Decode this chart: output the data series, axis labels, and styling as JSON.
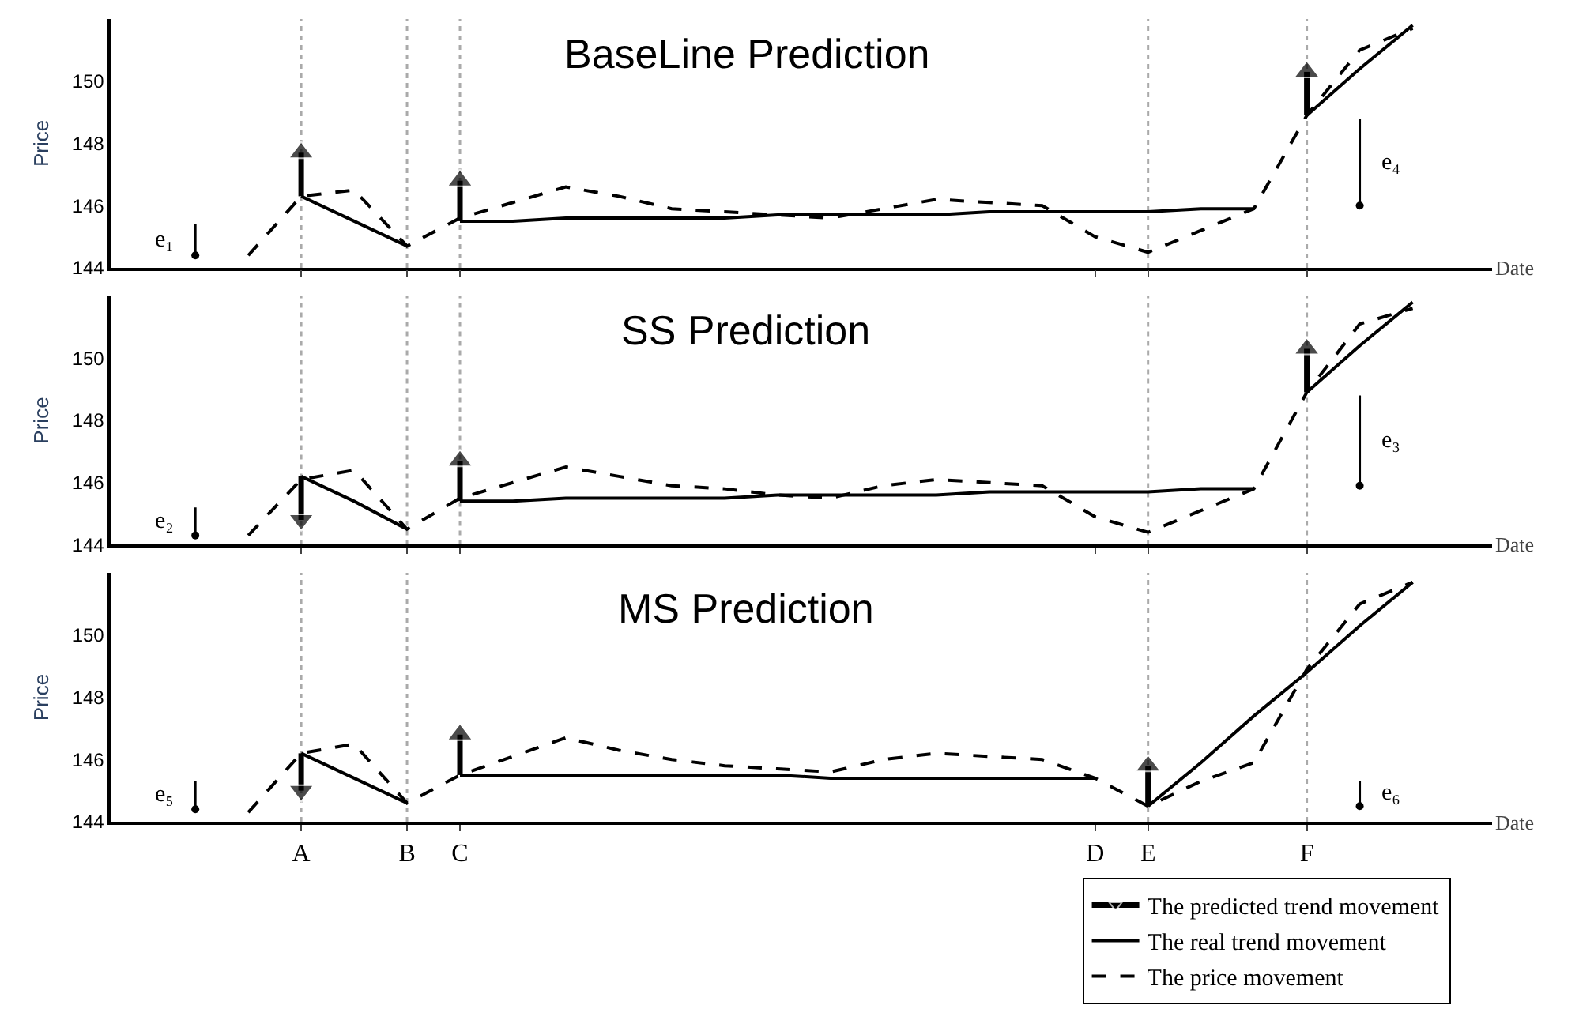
{
  "chart_data": [
    {
      "type": "line",
      "title": "BaseLine Prediction",
      "xlabel": "Date",
      "ylabel": "Price",
      "ylim": [
        144,
        152
      ],
      "yticks": [
        144,
        146,
        148,
        150
      ],
      "tick_labels": "y",
      "grid": false,
      "categories": [
        null,
        null,
        "A",
        null,
        "B",
        "C",
        null,
        null,
        null,
        null,
        null,
        null,
        null,
        null,
        null,
        null,
        null,
        "D",
        "E",
        null,
        null,
        "F",
        null,
        null
      ],
      "series": [
        {
          "color": "#000000",
          "line_style": "solid",
          "marker": "triangle",
          "x": [
            "A",
            "A"
          ],
          "values": [
            146.3,
            147.7
          ]
        },
        {
          "color": "#000000",
          "line_style": "solid",
          "marker": "triangle",
          "x": [
            "C",
            "C"
          ],
          "values": [
            145.5,
            146.8
          ]
        },
        {
          "color": "#000000",
          "line_style": "solid",
          "marker": "triangle",
          "x": [
            "F",
            "F"
          ],
          "values": [
            148.9,
            150.3
          ]
        },
        {
          "color": "#000000",
          "line_style": "solid",
          "marker": "none",
          "values": [
            null,
            null,
            146.3,
            145.5,
            144.7,
            null,
            null,
            null,
            null,
            null,
            null,
            null,
            null,
            null,
            null,
            null,
            null,
            null,
            null,
            null,
            null,
            null,
            null,
            null
          ]
        },
        {
          "color": "#000000",
          "line_style": "solid",
          "marker": "none",
          "values": [
            null,
            null,
            null,
            null,
            null,
            145.5,
            145.5,
            145.6,
            145.6,
            145.6,
            145.6,
            145.7,
            145.7,
            145.7,
            145.7,
            145.8,
            145.8,
            145.8,
            145.8,
            145.9,
            145.9,
            null,
            null,
            null
          ]
        },
        {
          "color": "#000000",
          "line_style": "solid",
          "marker": "none",
          "values": [
            null,
            null,
            null,
            null,
            null,
            null,
            null,
            null,
            null,
            null,
            null,
            null,
            null,
            null,
            null,
            null,
            null,
            null,
            null,
            null,
            null,
            148.9,
            150.4,
            151.8
          ]
        },
        {
          "color": "#000000",
          "line_style": "dashed",
          "marker": "none",
          "values": [
            null,
            144.4,
            146.3,
            146.5,
            144.7,
            145.6,
            146.1,
            146.6,
            146.3,
            145.9,
            145.8,
            145.7,
            145.6,
            145.9,
            146.2,
            146.1,
            146.0,
            145.0,
            144.5,
            145.2,
            145.9,
            148.9,
            151.0,
            151.7
          ]
        },
        {
          "type": "scatter",
          "color": "#000000",
          "marker": "circle",
          "values": [
            144.4,
            null,
            null,
            null,
            null,
            null,
            null,
            null,
            null,
            null,
            null,
            null,
            null,
            null,
            null,
            null,
            null,
            null,
            null,
            null,
            null,
            null,
            146.0,
            null
          ],
          "errors": [
            [
              144.4,
              145.4
            ],
            null,
            null,
            null,
            null,
            null,
            null,
            null,
            null,
            null,
            null,
            null,
            null,
            null,
            null,
            null,
            null,
            null,
            null,
            null,
            null,
            null,
            [
              146.0,
              148.8
            ],
            null
          ]
        }
      ],
      "ref_lines": [
        {
          "axis": "x",
          "value": "A",
          "color": "#aaaaaa",
          "line_style": "dotted"
        },
        {
          "axis": "x",
          "value": "B",
          "color": "#aaaaaa",
          "line_style": "dotted"
        },
        {
          "axis": "x",
          "value": "C",
          "color": "#aaaaaa",
          "line_style": "dotted"
        },
        {
          "axis": "x",
          "value": "E",
          "color": "#aaaaaa",
          "line_style": "dotted"
        },
        {
          "axis": "x",
          "value": "F",
          "color": "#aaaaaa",
          "line_style": "dotted"
        }
      ],
      "annotations": [
        "e₁",
        "e₄"
      ]
    },
    {
      "type": "line",
      "title": "SS Prediction",
      "xlabel": "Date",
      "ylabel": "Price",
      "ylim": [
        144,
        152
      ],
      "yticks": [
        144,
        146,
        148,
        150
      ],
      "tick_labels": "y",
      "grid": false,
      "categories": [
        null,
        null,
        "A",
        null,
        "B",
        "C",
        null,
        null,
        null,
        null,
        null,
        null,
        null,
        null,
        null,
        null,
        null,
        "D",
        "E",
        null,
        null,
        "F",
        null,
        null
      ],
      "series": [
        {
          "color": "#000000",
          "line_style": "solid",
          "marker": "triangle",
          "x": [
            "A",
            "A"
          ],
          "values": [
            146.2,
            144.8
          ]
        },
        {
          "color": "#000000",
          "line_style": "solid",
          "marker": "triangle",
          "x": [
            "C",
            "C"
          ],
          "values": [
            145.4,
            146.7
          ]
        },
        {
          "color": "#000000",
          "line_style": "solid",
          "marker": "triangle",
          "x": [
            "F",
            "F"
          ],
          "values": [
            148.9,
            150.3
          ]
        },
        {
          "color": "#000000",
          "line_style": "solid",
          "marker": "none",
          "values": [
            null,
            null,
            146.2,
            145.4,
            144.5,
            null,
            null,
            null,
            null,
            null,
            null,
            null,
            null,
            null,
            null,
            null,
            null,
            null,
            null,
            null,
            null,
            null,
            null,
            null
          ]
        },
        {
          "color": "#000000",
          "line_style": "solid",
          "marker": "none",
          "values": [
            null,
            null,
            null,
            null,
            null,
            145.4,
            145.4,
            145.5,
            145.5,
            145.5,
            145.5,
            145.6,
            145.6,
            145.6,
            145.6,
            145.7,
            145.7,
            145.7,
            145.7,
            145.8,
            145.8,
            null,
            null,
            null
          ]
        },
        {
          "color": "#000000",
          "line_style": "solid",
          "marker": "none",
          "values": [
            null,
            null,
            null,
            null,
            null,
            null,
            null,
            null,
            null,
            null,
            null,
            null,
            null,
            null,
            null,
            null,
            null,
            null,
            null,
            null,
            null,
            148.9,
            150.4,
            151.8
          ]
        },
        {
          "color": "#000000",
          "line_style": "dashed",
          "marker": "none",
          "values": [
            null,
            144.3,
            146.1,
            146.4,
            144.5,
            145.5,
            146.0,
            146.5,
            146.2,
            145.9,
            145.8,
            145.6,
            145.5,
            145.9,
            146.1,
            146.0,
            145.9,
            144.9,
            144.4,
            145.1,
            145.8,
            148.9,
            151.1,
            151.6
          ]
        },
        {
          "type": "scatter",
          "color": "#000000",
          "marker": "circle",
          "values": [
            144.3,
            null,
            null,
            null,
            null,
            null,
            null,
            null,
            null,
            null,
            null,
            null,
            null,
            null,
            null,
            null,
            null,
            null,
            null,
            null,
            null,
            null,
            145.9,
            null
          ],
          "errors": [
            [
              144.3,
              145.2
            ],
            null,
            null,
            null,
            null,
            null,
            null,
            null,
            null,
            null,
            null,
            null,
            null,
            null,
            null,
            null,
            null,
            null,
            null,
            null,
            null,
            null,
            [
              145.9,
              148.8
            ],
            null
          ]
        }
      ],
      "ref_lines": [
        {
          "axis": "x",
          "value": "A",
          "color": "#aaaaaa",
          "line_style": "dotted"
        },
        {
          "axis": "x",
          "value": "B",
          "color": "#aaaaaa",
          "line_style": "dotted"
        },
        {
          "axis": "x",
          "value": "C",
          "color": "#aaaaaa",
          "line_style": "dotted"
        },
        {
          "axis": "x",
          "value": "E",
          "color": "#aaaaaa",
          "line_style": "dotted"
        },
        {
          "axis": "x",
          "value": "F",
          "color": "#aaaaaa",
          "line_style": "dotted"
        }
      ],
      "annotations": [
        "e₂",
        "e₃"
      ]
    },
    {
      "type": "line",
      "title": "MS Prediction",
      "xlabel": "Date",
      "ylabel": "Price",
      "ylim": [
        144,
        152
      ],
      "yticks": [
        144,
        146,
        148,
        150
      ],
      "grid": false,
      "legend": "bottom right",
      "categories": [
        null,
        null,
        "A",
        null,
        "B",
        "C",
        null,
        null,
        null,
        null,
        null,
        null,
        null,
        null,
        null,
        null,
        null,
        "D",
        "E",
        null,
        null,
        "F",
        null,
        null
      ],
      "series": [
        {
          "name": "The predicted trend movement",
          "color": "#000000",
          "line_style": "solid",
          "marker": "triangle",
          "x": [
            "A",
            "A"
          ],
          "values": [
            146.2,
            145.0
          ]
        },
        {
          "color": "#000000",
          "line_style": "solid",
          "marker": "triangle",
          "x": [
            "C",
            "C"
          ],
          "values": [
            145.5,
            146.8
          ]
        },
        {
          "color": "#000000",
          "line_style": "solid",
          "marker": "triangle",
          "x": [
            "E",
            "E"
          ],
          "values": [
            144.5,
            145.8
          ]
        },
        {
          "name": "The real trend movement",
          "color": "#000000",
          "line_style": "solid",
          "marker": "none",
          "values": [
            null,
            null,
            146.2,
            145.4,
            144.6,
            null,
            null,
            null,
            null,
            null,
            null,
            null,
            null,
            null,
            null,
            null,
            null,
            null,
            null,
            null,
            null,
            null,
            null,
            null
          ]
        },
        {
          "color": "#000000",
          "line_style": "solid",
          "marker": "none",
          "values": [
            null,
            null,
            null,
            null,
            null,
            145.5,
            145.5,
            145.5,
            145.5,
            145.5,
            145.5,
            145.5,
            145.4,
            145.4,
            145.4,
            145.4,
            145.4,
            145.4,
            null,
            null,
            null,
            null,
            null,
            null
          ]
        },
        {
          "color": "#000000",
          "line_style": "solid",
          "marker": "none",
          "values": [
            null,
            null,
            null,
            null,
            null,
            null,
            null,
            null,
            null,
            null,
            null,
            null,
            null,
            null,
            null,
            null,
            null,
            null,
            144.5,
            145.9,
            147.4,
            148.8,
            150.3,
            151.7
          ]
        },
        {
          "name": "The price movement",
          "color": "#000000",
          "line_style": "dashed",
          "marker": "none",
          "values": [
            null,
            144.3,
            146.2,
            146.5,
            144.6,
            145.5,
            146.1,
            146.7,
            146.3,
            146.0,
            145.8,
            145.7,
            145.6,
            146.0,
            146.2,
            146.1,
            146.0,
            145.4,
            144.5,
            145.3,
            145.9,
            148.9,
            151.0,
            151.7
          ]
        },
        {
          "type": "scatter",
          "color": "#000000",
          "marker": "circle",
          "values": [
            144.4,
            null,
            null,
            null,
            null,
            null,
            null,
            null,
            null,
            null,
            null,
            null,
            null,
            null,
            null,
            null,
            null,
            null,
            null,
            null,
            null,
            null,
            144.5,
            null
          ],
          "errors": [
            [
              144.4,
              145.3
            ],
            null,
            null,
            null,
            null,
            null,
            null,
            null,
            null,
            null,
            null,
            null,
            null,
            null,
            null,
            null,
            null,
            null,
            null,
            null,
            null,
            null,
            [
              144.5,
              145.3
            ],
            null
          ]
        }
      ],
      "ref_lines": [
        {
          "axis": "x",
          "value": "A",
          "color": "#aaaaaa",
          "line_style": "dotted"
        },
        {
          "axis": "x",
          "value": "B",
          "color": "#aaaaaa",
          "line_style": "dotted"
        },
        {
          "axis": "x",
          "value": "E",
          "color": "#aaaaaa",
          "line_style": "dotted"
        },
        {
          "axis": "x",
          "value": "F",
          "color": "#aaaaaa",
          "line_style": "dotted"
        }
      ],
      "annotations": [
        "e₅",
        "e₆"
      ]
    }
  ]
}
